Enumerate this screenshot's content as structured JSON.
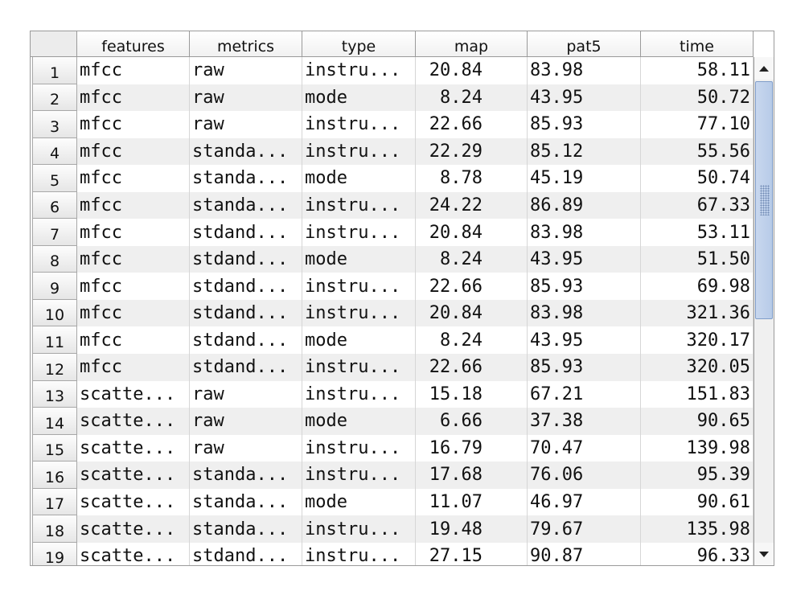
{
  "table": {
    "columns": [
      "features",
      "metrics",
      "type",
      "map",
      "pat5",
      "time"
    ],
    "rows": [
      {
        "n": "1",
        "features": "mfcc",
        "metrics": "raw",
        "type": "instru...",
        "map": "20.84",
        "pat5": "83.98",
        "time": "58.11"
      },
      {
        "n": "2",
        "features": "mfcc",
        "metrics": "raw",
        "type": "mode",
        "map": "8.24",
        "pat5": "43.95",
        "time": "50.72"
      },
      {
        "n": "3",
        "features": "mfcc",
        "metrics": "raw",
        "type": "instru...",
        "map": "22.66",
        "pat5": "85.93",
        "time": "77.10"
      },
      {
        "n": "4",
        "features": "mfcc",
        "metrics": "standa...",
        "type": "instru...",
        "map": "22.29",
        "pat5": "85.12",
        "time": "55.56"
      },
      {
        "n": "5",
        "features": "mfcc",
        "metrics": "standa...",
        "type": "mode",
        "map": "8.78",
        "pat5": "45.19",
        "time": "50.74"
      },
      {
        "n": "6",
        "features": "mfcc",
        "metrics": "standa...",
        "type": "instru...",
        "map": "24.22",
        "pat5": "86.89",
        "time": "67.33"
      },
      {
        "n": "7",
        "features": "mfcc",
        "metrics": "stdand...",
        "type": "instru...",
        "map": "20.84",
        "pat5": "83.98",
        "time": "53.11"
      },
      {
        "n": "8",
        "features": "mfcc",
        "metrics": "stdand...",
        "type": "mode",
        "map": "8.24",
        "pat5": "43.95",
        "time": "51.50"
      },
      {
        "n": "9",
        "features": "mfcc",
        "metrics": "stdand...",
        "type": "instru...",
        "map": "22.66",
        "pat5": "85.93",
        "time": "69.98"
      },
      {
        "n": "10",
        "features": "mfcc",
        "metrics": "stdand...",
        "type": "instru...",
        "map": "20.84",
        "pat5": "83.98",
        "time": "321.36"
      },
      {
        "n": "11",
        "features": "mfcc",
        "metrics": "stdand...",
        "type": "mode",
        "map": "8.24",
        "pat5": "43.95",
        "time": "320.17"
      },
      {
        "n": "12",
        "features": "mfcc",
        "metrics": "stdand...",
        "type": "instru...",
        "map": "22.66",
        "pat5": "85.93",
        "time": "320.05"
      },
      {
        "n": "13",
        "features": "scatte...",
        "metrics": "raw",
        "type": "instru...",
        "map": "15.18",
        "pat5": "67.21",
        "time": "151.83"
      },
      {
        "n": "14",
        "features": "scatte...",
        "metrics": "raw",
        "type": "mode",
        "map": "6.66",
        "pat5": "37.38",
        "time": "90.65"
      },
      {
        "n": "15",
        "features": "scatte...",
        "metrics": "raw",
        "type": "instru...",
        "map": "16.79",
        "pat5": "70.47",
        "time": "139.98"
      },
      {
        "n": "16",
        "features": "scatte...",
        "metrics": "standa...",
        "type": "instru...",
        "map": "17.68",
        "pat5": "76.06",
        "time": "95.39"
      },
      {
        "n": "17",
        "features": "scatte...",
        "metrics": "standa...",
        "type": "mode",
        "map": "11.07",
        "pat5": "46.97",
        "time": "90.61"
      },
      {
        "n": "18",
        "features": "scatte...",
        "metrics": "standa...",
        "type": "instru...",
        "map": "19.48",
        "pat5": "79.67",
        "time": "135.98"
      },
      {
        "n": "19",
        "features": "scatte...",
        "metrics": "stdand...",
        "type": "instru...",
        "map": "27.15",
        "pat5": "90.87",
        "time": "96.33"
      }
    ]
  },
  "scrollbar": {
    "up_icon": "arrow-up-icon",
    "down_icon": "arrow-down-icon"
  }
}
